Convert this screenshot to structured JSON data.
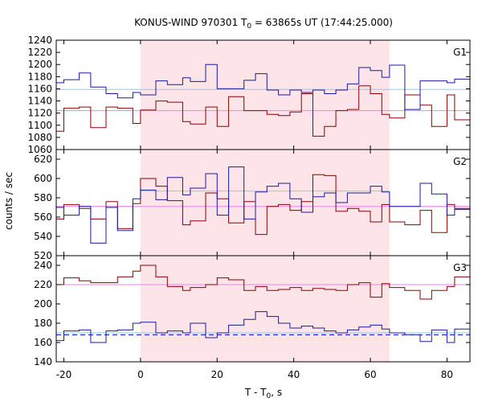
{
  "chart_data": {
    "type": "line",
    "title_parts": {
      "prefix": "KONUS-WIND 970301 T",
      "sub": "0",
      "suffix": " = 63865s UT (17:44:25.000)"
    },
    "xlabel_parts": {
      "prefix": "T - T",
      "sub": "0",
      "suffix": ", s"
    },
    "ylabel": "counts / sec",
    "xlim": [
      -22,
      86
    ],
    "xticks": [
      -20,
      0,
      20,
      40,
      60,
      80
    ],
    "interval": {
      "start": 0,
      "end": 65,
      "color": "#fde4e9"
    },
    "colors": {
      "hard": "#8b0000",
      "soft": "#1a1a9c",
      "hard_fit": "#ee82ee",
      "soft_fit": "#87ceeb",
      "fit_dashed": "#0000cd"
    },
    "panels": [
      {
        "name": "G1",
        "ylim": [
          1060,
          1240
        ],
        "yticks": [
          1060,
          1080,
          1100,
          1120,
          1140,
          1160,
          1180,
          1200,
          1220,
          1240
        ],
        "x": [
          -22,
          -20,
          -16,
          -13,
          -9,
          -6,
          -2,
          0,
          4,
          7,
          11,
          13,
          17,
          20,
          23,
          27,
          30,
          33,
          36,
          39,
          42,
          45,
          48,
          51,
          54,
          57,
          60,
          63,
          65,
          69,
          73,
          76,
          80,
          82,
          86
        ],
        "series": [
          {
            "name": "",
            "color": "#8b0000",
            "values": [
              1090,
              1128,
              1130,
              1096,
              1130,
              1128,
              1103,
              1125,
              1140,
              1138,
              1106,
              1102,
              1130,
              1098,
              1147,
              1124,
              1124,
              1118,
              1116,
              1122,
              1152,
              1082,
              1098,
              1124,
              1126,
              1165,
              1152,
              1118,
              1112,
              1150,
              1133,
              1098,
              1150,
              1109,
              1125
            ]
          },
          {
            "name": "",
            "color": "#1a1a9c",
            "values": [
              1170,
              1175,
              1186,
              1163,
              1152,
              1145,
              1154,
              1150,
              1173,
              1167,
              1178,
              1172,
              1200,
              1160,
              1160,
              1174,
              1185,
              1158,
              1150,
              1158,
              1154,
              1158,
              1152,
              1158,
              1168,
              1195,
              1190,
              1179,
              1199,
              1126,
              1173,
              1173,
              1170,
              1176,
              1184
            ]
          }
        ],
        "fits": [
          {
            "color": "#87ceeb",
            "style": "solid",
            "segments": [
              [
                -22,
                86,
                1159
              ]
            ]
          },
          {
            "color": "#ee82ee",
            "style": "solid",
            "segments": [
              [
                -22,
                86,
                1124
              ]
            ]
          }
        ]
      },
      {
        "name": "G2",
        "ylim": [
          520,
          630
        ],
        "yticks": [
          520,
          540,
          560,
          580,
          600,
          620
        ],
        "x": [
          -22,
          -20,
          -16,
          -13,
          -9,
          -6,
          -2,
          0,
          4,
          7,
          11,
          13,
          17,
          20,
          23,
          27,
          30,
          33,
          36,
          39,
          42,
          45,
          48,
          51,
          54,
          57,
          60,
          63,
          65,
          69,
          73,
          76,
          80,
          82,
          86
        ],
        "series": [
          {
            "name": "",
            "color": "#8b0000",
            "values": [
              558,
              573,
              569,
              558,
              576,
              548,
              574,
              600,
              592,
              577,
              552,
              556,
              585,
              579,
              554,
              576,
              542,
              571,
              573,
              567,
              576,
              604,
              603,
              566,
              569,
              566,
              555,
              573,
              555,
              552,
              567,
              544,
              573,
              569,
              579
            ]
          },
          {
            "name": "",
            "color": "#1a1a9c",
            "values": [
              570,
              562,
              571,
              533,
              570,
              546,
              579,
              588,
              578,
              601,
              583,
              590,
              605,
              562,
              612,
              558,
              586,
              592,
              595,
              579,
              565,
              581,
              585,
              575,
              585,
              585,
              592,
              586,
              571,
              571,
              595,
              584,
              562,
              568,
              598
            ]
          }
        ],
        "fits": [
          {
            "color": "#87ceeb",
            "style": "solid",
            "segments": [
              [
                -22,
                0,
                571
              ],
              [
                0,
                65,
                587
              ],
              [
                65,
                86,
                571
              ]
            ]
          },
          {
            "color": "#ee82ee",
            "style": "solid",
            "segments": [
              [
                -22,
                86,
                571
              ]
            ]
          }
        ]
      },
      {
        "name": "G3",
        "ylim": [
          140,
          250
        ],
        "yticks": [
          140,
          160,
          180,
          200,
          220,
          240
        ],
        "x": [
          -22,
          -20,
          -16,
          -13,
          -9,
          -6,
          -2,
          0,
          4,
          7,
          11,
          13,
          17,
          20,
          23,
          27,
          30,
          33,
          36,
          39,
          42,
          45,
          48,
          51,
          54,
          57,
          60,
          63,
          65,
          69,
          73,
          76,
          80,
          82,
          86
        ],
        "series": [
          {
            "name": "",
            "color": "#8b0000",
            "values": [
              220,
              227,
              224,
              222,
              222,
              228,
              234,
              240,
              228,
              218,
              214,
              217,
              220,
              227,
              225,
              214,
              218,
              214,
              215,
              217,
              214,
              216,
              215,
              214,
              220,
              222,
              207,
              221,
              217,
              214,
              205,
              214,
              218,
              228,
              225
            ]
          },
          {
            "name": "",
            "color": "#1a1a9c",
            "values": [
              162,
              172,
              173,
              160,
              172,
              173,
              180,
              181,
              170,
              172,
              170,
              180,
              165,
              170,
              178,
              184,
              192,
              187,
              180,
              175,
              177,
              175,
              172,
              170,
              173,
              176,
              178,
              174,
              170,
              168,
              161,
              173,
              160,
              174,
              172
            ]
          }
        ],
        "fits": [
          {
            "color": "#ee82ee",
            "style": "solid",
            "segments": [
              [
                -22,
                86,
                220
              ]
            ]
          },
          {
            "color": "#87ceeb",
            "style": "solid",
            "segments": [
              [
                -22,
                86,
                170
              ]
            ]
          },
          {
            "color": "#0000cd",
            "style": "dashed",
            "segments": [
              [
                -22,
                86,
                168
              ]
            ]
          }
        ]
      }
    ]
  }
}
